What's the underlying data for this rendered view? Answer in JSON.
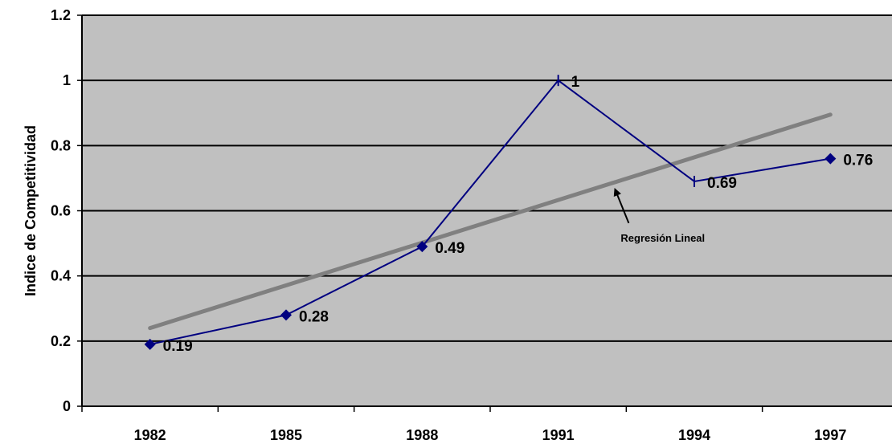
{
  "chart_data": {
    "type": "line",
    "ylabel": "Indice de Competitividad",
    "xlabel": "",
    "categories": [
      "1982",
      "1985",
      "1988",
      "1991",
      "1994",
      "1997"
    ],
    "y_ticks": [
      "0",
      "0.2",
      "0.4",
      "0.6",
      "0.8",
      "1",
      "1.2"
    ],
    "ylim": [
      0,
      1.2
    ],
    "grid": true,
    "series": [
      {
        "values": [
          0.19,
          0.28,
          0.49,
          1,
          0.69,
          0.76
        ],
        "data_labels": [
          "0.19",
          "0.28",
          "0.49",
          "1",
          "0.69",
          "0.76"
        ],
        "markers": [
          "diamond",
          "diamond",
          "diamond",
          "dash",
          "dash",
          "diamond"
        ]
      }
    ],
    "trendline": {
      "type": "linear",
      "start": 0.24,
      "end": 0.895
    },
    "annotation": {
      "text": "Regresión Lineal",
      "points_to": "trendline"
    },
    "colors": {
      "plot_background": "#c0c0c0",
      "series_line": "#000080",
      "trendline": "#808080",
      "gridlines": "#000000"
    }
  }
}
